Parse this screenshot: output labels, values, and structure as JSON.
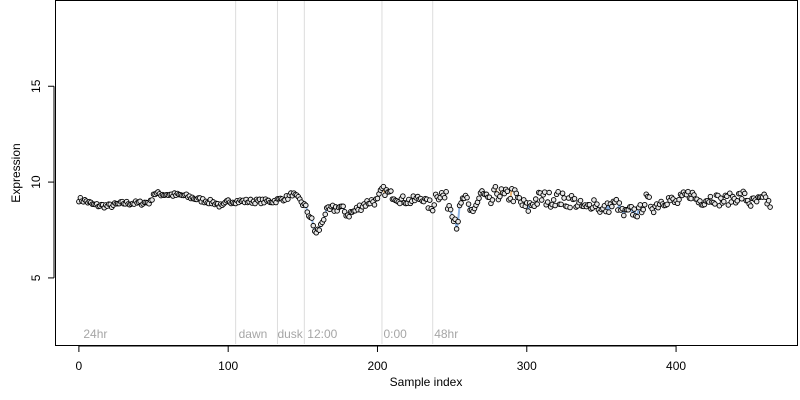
{
  "chart_data": {
    "type": "scatter",
    "title": "",
    "xlabel": "Sample index",
    "ylabel": "Expression",
    "xlim": [
      -16,
      481
    ],
    "ylim": [
      1.5,
      19.5
    ],
    "x_ticks": [
      0,
      100,
      200,
      300,
      400
    ],
    "y_ticks": [
      5,
      10,
      15
    ],
    "grid": false,
    "colors": {
      "point_fill": "#e8e8e8",
      "point_stroke": "#000000",
      "low_line": "#7ba7e0",
      "high_line": "#e8a95a",
      "divider": "#dcdcdc",
      "region_text": "#a6a6a6"
    },
    "regions": [
      {
        "label": "24hr",
        "x": 3
      },
      {
        "label": "dawn",
        "x": 107
      },
      {
        "label": "dusk",
        "x": 133
      },
      {
        "label": "12:00",
        "x": 153
      },
      {
        "label": "0:00",
        "x": 204
      },
      {
        "label": "48hr",
        "x": 238
      }
    ],
    "dividers": [
      105,
      133,
      151,
      203,
      237
    ],
    "anchors": [
      [
        0,
        9.1
      ],
      [
        5,
        9.0
      ],
      [
        10,
        8.8
      ],
      [
        20,
        8.75
      ],
      [
        30,
        8.9
      ],
      [
        40,
        8.9
      ],
      [
        48,
        8.95
      ],
      [
        50,
        9.4
      ],
      [
        60,
        9.35
      ],
      [
        70,
        9.3
      ],
      [
        80,
        9.1
      ],
      [
        92,
        8.9
      ],
      [
        96,
        8.7
      ],
      [
        100,
        9.0
      ],
      [
        110,
        9.0
      ],
      [
        120,
        9.0
      ],
      [
        130,
        9.0
      ],
      [
        140,
        9.2
      ],
      [
        143,
        9.4
      ],
      [
        146,
        9.2
      ],
      [
        150,
        8.9
      ],
      [
        155,
        8.2
      ],
      [
        157,
        7.7
      ],
      [
        159,
        7.3
      ],
      [
        162,
        7.7
      ],
      [
        165,
        8.4
      ],
      [
        170,
        8.6
      ],
      [
        175,
        8.7
      ],
      [
        180,
        8.3
      ],
      [
        185,
        8.5
      ],
      [
        190,
        8.8
      ],
      [
        195,
        9.0
      ],
      [
        200,
        9.0
      ],
      [
        203,
        9.6
      ],
      [
        208,
        9.4
      ],
      [
        215,
        9.1
      ],
      [
        222,
        9.0
      ],
      [
        230,
        9.2
      ],
      [
        236,
        8.6
      ],
      [
        240,
        9.5
      ],
      [
        245,
        9.2
      ],
      [
        250,
        8.6
      ],
      [
        253,
        7.9
      ],
      [
        258,
        9.2
      ],
      [
        262,
        8.4
      ],
      [
        266,
        8.8
      ],
      [
        270,
        9.4
      ],
      [
        275,
        8.8
      ],
      [
        280,
        9.5
      ],
      [
        285,
        9.2
      ],
      [
        290,
        9.4
      ],
      [
        295,
        9.0
      ],
      [
        300,
        8.6
      ],
      [
        305,
        9.0
      ],
      [
        310,
        9.2
      ],
      [
        315,
        9.1
      ],
      [
        320,
        9.2
      ],
      [
        325,
        9.0
      ],
      [
        330,
        9.1
      ],
      [
        335,
        8.8
      ],
      [
        340,
        8.6
      ],
      [
        345,
        9.0
      ],
      [
        350,
        8.5
      ],
      [
        355,
        8.7
      ],
      [
        360,
        8.9
      ],
      [
        365,
        8.3
      ],
      [
        370,
        8.5
      ],
      [
        375,
        8.4
      ],
      [
        380,
        9.1
      ],
      [
        385,
        8.7
      ],
      [
        390,
        9.0
      ],
      [
        395,
        9.1
      ],
      [
        400,
        8.9
      ],
      [
        405,
        9.2
      ],
      [
        410,
        9.4
      ],
      [
        415,
        9.0
      ],
      [
        420,
        9.1
      ],
      [
        425,
        9.2
      ],
      [
        430,
        9.0
      ],
      [
        435,
        9.1
      ],
      [
        440,
        9.2
      ],
      [
        445,
        9.3
      ],
      [
        450,
        8.9
      ],
      [
        455,
        9.0
      ],
      [
        460,
        9.1
      ],
      [
        463,
        8.8
      ]
    ],
    "noise": [
      {
        "from": 0,
        "to": 150,
        "amp": 0.12
      },
      {
        "from": 150,
        "to": 235,
        "amp": 0.22
      },
      {
        "from": 235,
        "to": 330,
        "amp": 0.42
      },
      {
        "from": 330,
        "to": 463,
        "amp": 0.3
      }
    ],
    "n_points": 464
  }
}
